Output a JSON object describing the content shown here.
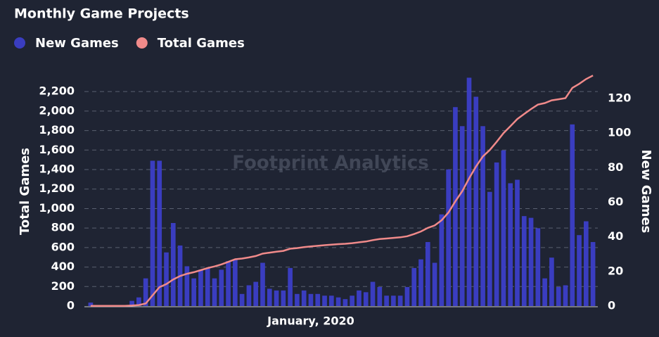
{
  "chart_data": {
    "type": "bar-line",
    "title": "Monthly Game Projects",
    "watermark": "Footprint Analytics",
    "y_label": "Total Games",
    "y2_label": "New Games",
    "categories": [
      null,
      null,
      null,
      null,
      null,
      null,
      null,
      null,
      null,
      null,
      null,
      null,
      null,
      null,
      null,
      null,
      null,
      null,
      null,
      null,
      null,
      null,
      null,
      null,
      null,
      null,
      null,
      null,
      null,
      null,
      null,
      null,
      "January, 2020",
      null,
      null,
      null,
      null,
      null,
      null,
      null,
      null,
      null,
      null,
      null,
      null,
      null,
      null,
      null,
      null,
      null,
      null,
      null,
      null,
      null,
      null,
      null,
      null,
      null,
      null,
      null,
      null,
      null,
      null,
      null,
      null,
      null,
      null,
      null,
      null,
      null,
      null,
      null,
      null,
      null
    ],
    "series": [
      {
        "name": "New Games",
        "color": "#3a3dc0",
        "axis": "y2",
        "kind": "bar",
        "values": [
          2,
          0,
          0,
          0,
          0,
          0,
          3,
          5,
          16,
          84,
          84,
          31,
          48,
          35,
          23,
          16,
          21,
          22,
          16,
          21,
          26,
          27,
          7,
          12,
          14,
          25,
          10,
          9,
          9,
          22,
          7,
          9,
          7,
          7,
          6,
          6,
          5,
          4,
          6,
          9,
          8,
          14,
          11,
          6,
          6,
          6,
          11,
          22,
          27,
          37,
          25,
          53,
          79,
          115,
          104,
          132,
          121,
          104,
          66,
          83,
          90,
          71,
          73,
          52,
          51,
          45,
          16,
          28,
          11,
          12,
          105,
          41,
          49,
          37
        ]
      },
      {
        "name": "Total Games",
        "color": "#f08a8a",
        "axis": "y",
        "kind": "line",
        "values": [
          2,
          2,
          2,
          2,
          2,
          2,
          5,
          10,
          26,
          110,
          194,
          225,
          273,
          308,
          331,
          347,
          368,
          390,
          406,
          427,
          453,
          480,
          487,
          499,
          513,
          538,
          548,
          557,
          566,
          588,
          595,
          604,
          611,
          618,
          624,
          630,
          635,
          639,
          645,
          654,
          662,
          676,
          687,
          693,
          699,
          705,
          716,
          738,
          765,
          802,
          827,
          880,
          959,
          1074,
          1178,
          1310,
          1431,
          1535,
          1601,
          1684,
          1774,
          1845,
          1918,
          1970,
          2021,
          2066,
          2082,
          2110,
          2121,
          2133,
          2238,
          2279,
          2328,
          2365
        ]
      }
    ],
    "ylim": [
      0,
      2360
    ],
    "yticks": [
      0,
      200,
      400,
      600,
      800,
      {
        "value": 1000,
        "label": "1,000"
      },
      {
        "value": 1200,
        "label": "1,200"
      },
      {
        "value": 1400,
        "label": "1,400"
      },
      {
        "value": 1600,
        "label": "1,600"
      },
      {
        "value": 1800,
        "label": "1,800"
      },
      {
        "value": 2000,
        "label": "2,000"
      },
      {
        "value": 2200,
        "label": "2,200"
      }
    ],
    "y2lim": [
      0,
      133
    ],
    "y2ticks": [
      0,
      20,
      40,
      60,
      80,
      100,
      120
    ],
    "grid": true
  }
}
